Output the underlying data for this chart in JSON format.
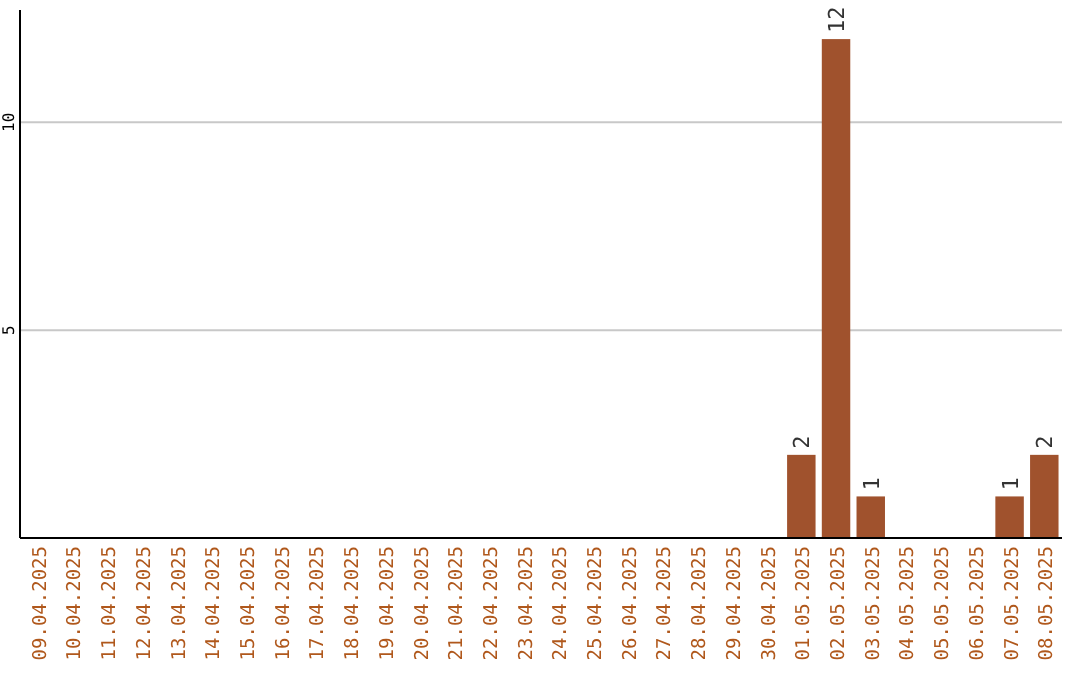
{
  "chart_data": {
    "type": "bar",
    "categories": [
      "09.04.2025",
      "10.04.2025",
      "11.04.2025",
      "12.04.2025",
      "13.04.2025",
      "14.04.2025",
      "15.04.2025",
      "16.04.2025",
      "17.04.2025",
      "18.04.2025",
      "19.04.2025",
      "20.04.2025",
      "21.04.2025",
      "22.04.2025",
      "23.04.2025",
      "24.04.2025",
      "25.04.2025",
      "26.04.2025",
      "27.04.2025",
      "28.04.2025",
      "29.04.2025",
      "30.04.2025",
      "01.05.2025",
      "02.05.2025",
      "03.05.2025",
      "04.05.2025",
      "05.05.2025",
      "06.05.2025",
      "07.05.2025",
      "08.05.2025"
    ],
    "values": [
      0,
      0,
      0,
      0,
      0,
      0,
      0,
      0,
      0,
      0,
      0,
      0,
      0,
      0,
      0,
      0,
      0,
      0,
      0,
      0,
      0,
      0,
      2,
      12,
      1,
      0,
      0,
      0,
      1,
      2
    ],
    "value_labels": [
      null,
      null,
      null,
      null,
      null,
      null,
      null,
      null,
      null,
      null,
      null,
      null,
      null,
      null,
      null,
      null,
      null,
      null,
      null,
      null,
      null,
      null,
      "2",
      "12",
      "1",
      null,
      null,
      null,
      "1",
      "2"
    ],
    "color": "#a0522d",
    "ylim": [
      0,
      12.7
    ],
    "yticks": [
      5,
      10
    ],
    "grid": "y"
  }
}
